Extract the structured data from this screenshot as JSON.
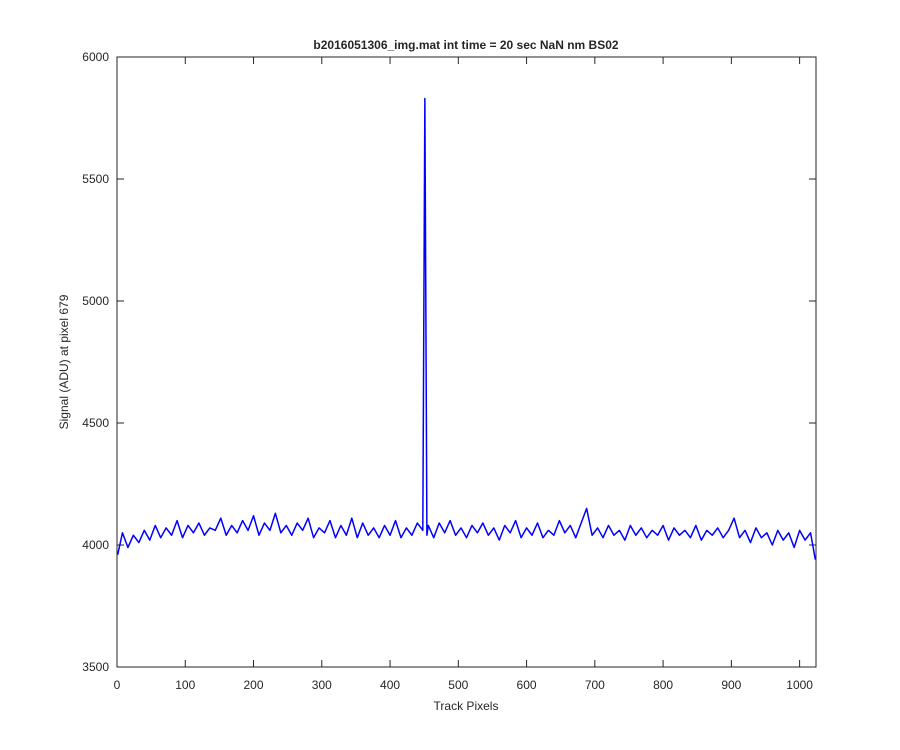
{
  "chart_data": {
    "type": "line",
    "title": "b2016051306_img.mat int time = 20 sec  NaN nm BS02",
    "xlabel": "Track Pixels",
    "ylabel": "Signal (ADU) at pixel 679",
    "x": [
      1,
      8,
      16,
      24,
      32,
      40,
      48,
      56,
      64,
      72,
      80,
      88,
      96,
      104,
      112,
      120,
      128,
      136,
      144,
      152,
      160,
      168,
      176,
      184,
      192,
      200,
      208,
      216,
      224,
      232,
      240,
      248,
      256,
      264,
      272,
      280,
      288,
      296,
      304,
      312,
      320,
      328,
      336,
      344,
      352,
      360,
      368,
      376,
      384,
      392,
      400,
      408,
      416,
      424,
      432,
      440,
      448,
      451,
      454,
      456,
      464,
      472,
      480,
      488,
      496,
      504,
      512,
      520,
      528,
      536,
      544,
      552,
      560,
      568,
      576,
      584,
      592,
      600,
      608,
      616,
      624,
      632,
      640,
      648,
      656,
      664,
      672,
      680,
      688,
      696,
      704,
      712,
      720,
      728,
      736,
      744,
      752,
      760,
      768,
      776,
      784,
      792,
      800,
      808,
      816,
      824,
      832,
      840,
      848,
      856,
      864,
      872,
      880,
      888,
      896,
      904,
      912,
      920,
      928,
      936,
      944,
      952,
      960,
      968,
      976,
      984,
      992,
      1000,
      1008,
      1016,
      1023
    ],
    "series": [
      {
        "name": "signal",
        "color": "#0000ff",
        "values": [
          3960,
          4050,
          3990,
          4040,
          4010,
          4060,
          4020,
          4080,
          4030,
          4070,
          4040,
          4100,
          4030,
          4080,
          4050,
          4090,
          4040,
          4070,
          4060,
          4110,
          4040,
          4080,
          4050,
          4100,
          4060,
          4120,
          4040,
          4090,
          4060,
          4130,
          4050,
          4080,
          4040,
          4090,
          4060,
          4110,
          4030,
          4070,
          4050,
          4100,
          4030,
          4080,
          4040,
          4110,
          4030,
          4090,
          4040,
          4070,
          4030,
          4080,
          4040,
          4100,
          4030,
          4070,
          4040,
          4090,
          4060,
          5830,
          4040,
          4080,
          4030,
          4090,
          4050,
          4100,
          4040,
          4070,
          4030,
          4080,
          4050,
          4090,
          4040,
          4070,
          4020,
          4080,
          4050,
          4100,
          4030,
          4070,
          4040,
          4090,
          4030,
          4060,
          4040,
          4100,
          4050,
          4080,
          4030,
          4090,
          4150,
          4040,
          4070,
          4030,
          4080,
          4040,
          4060,
          4020,
          4080,
          4040,
          4070,
          4030,
          4060,
          4040,
          4080,
          4020,
          4070,
          4040,
          4060,
          4030,
          4080,
          4020,
          4060,
          4040,
          4070,
          4030,
          4060,
          4110,
          4030,
          4060,
          4010,
          4070,
          4030,
          4050,
          4000,
          4060,
          4020,
          4050,
          3990,
          4060,
          4020,
          4050,
          3940
        ]
      }
    ],
    "xlim": [
      0,
      1024
    ],
    "ylim": [
      3500,
      6000
    ],
    "xticks": [
      0,
      100,
      200,
      300,
      400,
      500,
      600,
      700,
      800,
      900,
      1000
    ],
    "yticks": [
      3500,
      4000,
      4500,
      5000,
      5500,
      6000
    ]
  }
}
